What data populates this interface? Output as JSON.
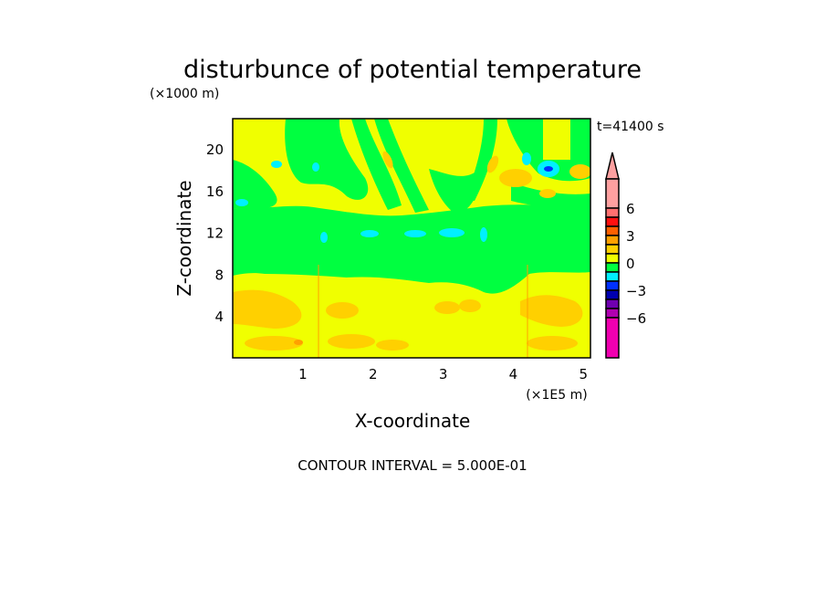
{
  "chart_data": {
    "type": "heatmap",
    "subtype": "filled-contour",
    "title": "disturbunce of potential temperature",
    "xlabel": "X-coordinate",
    "ylabel": "Z-coordinate",
    "x_unit": "(×1E5 m)",
    "y_unit": "(×1000 m)",
    "time_label": "t=41400 s",
    "footer": "CONTOUR INTERVAL = 5.000E-01",
    "xlim": [
      0,
      5.1
    ],
    "ylim": [
      0,
      22.9
    ],
    "x_ticks": [
      "1",
      "2",
      "3",
      "4",
      "5"
    ],
    "x_tick_values": [
      1,
      2,
      3,
      4,
      5
    ],
    "y_ticks": [
      "4",
      "8",
      "12",
      "16",
      "20"
    ],
    "y_tick_values": [
      4,
      8,
      12,
      16,
      20
    ],
    "grid": false,
    "colorbar": {
      "placement": "right",
      "tick_labels": [
        "6",
        "3",
        "0",
        "-3",
        "-6"
      ],
      "tick_values": [
        6,
        3,
        0,
        -3,
        -6
      ],
      "levels": [
        {
          "range": [
            6,
            null
          ],
          "color": "#ffa0a0"
        },
        {
          "range": [
            5,
            6
          ],
          "color": "#ff7070"
        },
        {
          "range": [
            4,
            5
          ],
          "color": "#ff1010"
        },
        {
          "range": [
            3,
            4
          ],
          "color": "#ff6000"
        },
        {
          "range": [
            2,
            3
          ],
          "color": "#ffa000"
        },
        {
          "range": [
            1,
            2
          ],
          "color": "#ffd000"
        },
        {
          "range": [
            0,
            1
          ],
          "color": "#f0ff00"
        },
        {
          "range": [
            -1,
            0
          ],
          "color": "#00ff40"
        },
        {
          "range": [
            -2,
            -1
          ],
          "color": "#00f0ff"
        },
        {
          "range": [
            -3,
            -2
          ],
          "color": "#0030ff"
        },
        {
          "range": [
            -4,
            -3
          ],
          "color": "#0000b0"
        },
        {
          "range": [
            -5,
            -4
          ],
          "color": "#7000b0"
        },
        {
          "range": [
            -6,
            -5
          ],
          "color": "#b000b0"
        },
        {
          "range": [
            null,
            -6
          ],
          "color": "#f000b0"
        }
      ]
    },
    "field_summary": [
      {
        "z_range": [
          0,
          8
        ],
        "value_range": [
          0,
          2
        ],
        "description_value": "lower layer mostly 0..1 with 1..2 patches"
      },
      {
        "z_range": [
          8,
          14
        ],
        "value_range": [
          -2,
          0
        ],
        "description_value": "middle layer mostly -1..0"
      },
      {
        "z_range": [
          14,
          23
        ],
        "value_range": [
          -4,
          3
        ],
        "description_value": "upper layer wave pattern; minimum near x=4.5, z=18"
      }
    ]
  }
}
